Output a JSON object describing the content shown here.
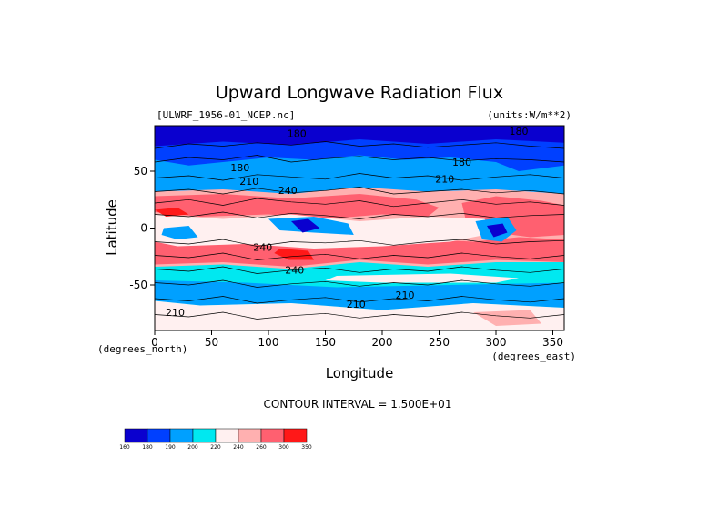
{
  "chart_data": {
    "type": "heatmap",
    "title": "Upward Longwave Radiation Flux",
    "dataset_label": "[ULWRF_1956-01_NCEP.nc]",
    "units_label": "(units:W/m**2)",
    "xlabel": "Longitude",
    "ylabel": "Latitude",
    "x_unit_label": "(degrees_east)",
    "y_unit_label": "(degrees_north)",
    "xlim": [
      0,
      360
    ],
    "ylim": [
      -90,
      90
    ],
    "x_ticks": [
      0,
      50,
      100,
      150,
      200,
      250,
      300,
      350
    ],
    "y_ticks": [
      50,
      0,
      -50
    ],
    "contour_interval_text": "CONTOUR INTERVAL = 1.500E+01",
    "contour_labels": [
      {
        "text": "180",
        "lon": 125,
        "lat": 80
      },
      {
        "text": "180",
        "lon": 320,
        "lat": 82
      },
      {
        "text": "180",
        "lon": 270,
        "lat": 55
      },
      {
        "text": "180",
        "lon": 75,
        "lat": 50
      },
      {
        "text": "210",
        "lon": 255,
        "lat": 40
      },
      {
        "text": "210",
        "lon": 83,
        "lat": 38
      },
      {
        "text": "240",
        "lon": 117,
        "lat": 30
      },
      {
        "text": "240",
        "lon": 95,
        "lat": -20
      },
      {
        "text": "240",
        "lon": 123,
        "lat": -40
      },
      {
        "text": "210",
        "lon": 220,
        "lat": -62
      },
      {
        "text": "210",
        "lon": 177,
        "lat": -70
      },
      {
        "text": "210",
        "lon": 18,
        "lat": -77
      }
    ],
    "colorbar": {
      "levels": [
        "160",
        "180",
        "190",
        "200",
        "220",
        "240",
        "260",
        "300",
        "350"
      ],
      "colors": [
        "#0a00cf",
        "#0040ff",
        "#00a0ff",
        "#00e8f0",
        "#fff0f0",
        "#ffb0b0",
        "#ff6070",
        "#ff1818"
      ]
    },
    "field_colors": {
      "160": "#0a00cf",
      "180": "#0040ff",
      "195": "#00a0ff",
      "210": "#00e8f0",
      "230": "#fff0f0",
      "250": "#ffb0b0",
      "275": "#ff6070",
      "310": "#ff1818"
    }
  }
}
